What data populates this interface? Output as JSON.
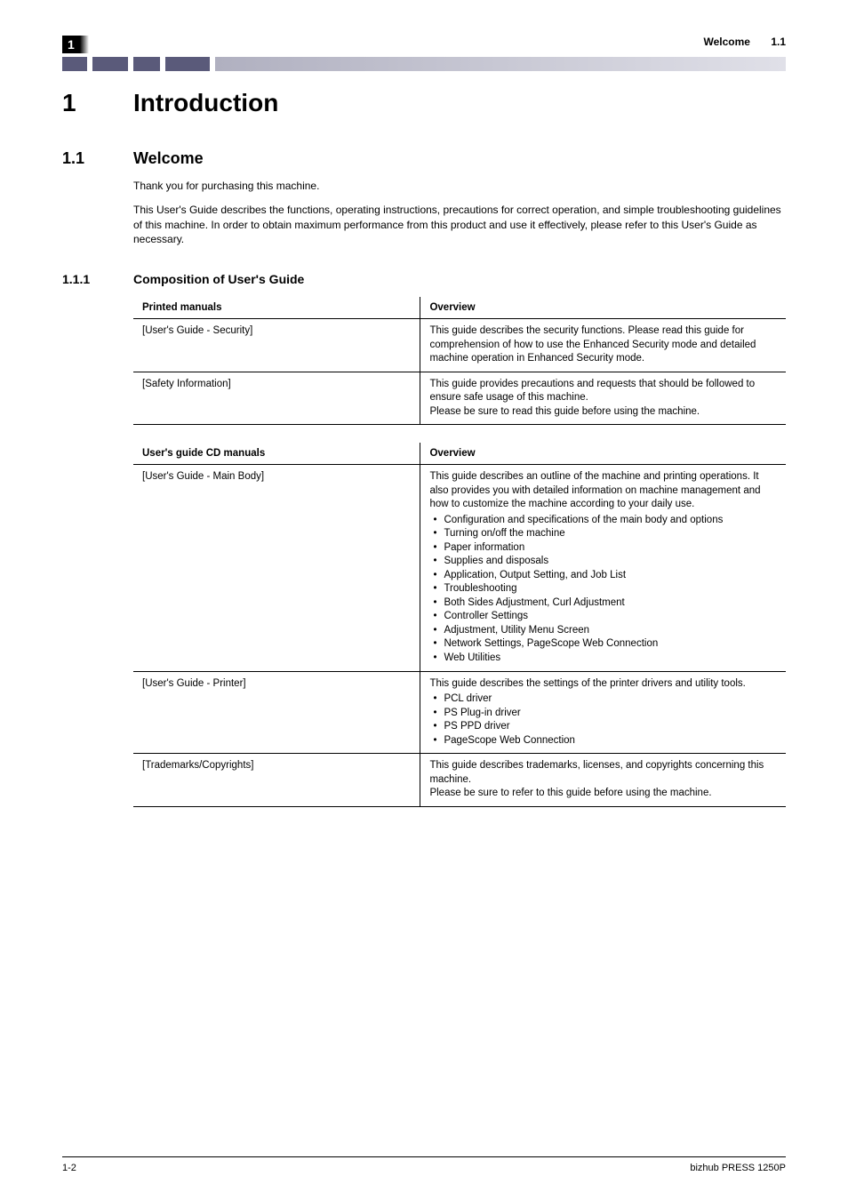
{
  "header": {
    "chapter_marker": "1",
    "header_title": "Welcome",
    "header_section_number": "1.1"
  },
  "chapter": {
    "number": "1",
    "title": "Introduction"
  },
  "section": {
    "number": "1.1",
    "title": "Welcome",
    "paragraphs": [
      "Thank you for purchasing this machine.",
      "This User's Guide describes the functions, operating instructions, precautions for correct operation, and simple troubleshooting guidelines of this machine. In order to obtain maximum performance from this product and use it effectively, please refer to this User's Guide as necessary."
    ]
  },
  "subsection": {
    "number": "1.1.1",
    "title": "Composition of User's Guide"
  },
  "table1": {
    "header_col1": "Printed manuals",
    "header_col2": "Overview",
    "rows": [
      {
        "col1": "[User's Guide - Security]",
        "col2_text": "This guide describes the security functions. Please read this guide for comprehension of how to use the Enhanced Security mode and detailed machine operation in Enhanced Security mode."
      },
      {
        "col1": "[Safety Information]",
        "col2_text": "This guide provides precautions and requests that should be followed to ensure safe usage of this machine.\nPlease be sure to read this guide before using the machine."
      }
    ]
  },
  "table2": {
    "header_col1": "User's guide CD manuals",
    "header_col2": "Overview",
    "rows": [
      {
        "col1": "[User's Guide - Main Body]",
        "col2_text": "This guide describes an outline of the machine and printing operations. It also provides you with detailed information on machine management and how to customize the machine according to your daily use.",
        "col2_bullets": [
          "Configuration and specifications of the main body and options",
          "Turning on/off the machine",
          "Paper information",
          "Supplies and disposals",
          "Application, Output Setting, and Job List",
          "Troubleshooting",
          "Both Sides Adjustment, Curl Adjustment",
          "Controller Settings",
          "Adjustment, Utility Menu Screen",
          "Network Settings, PageScope Web Connection",
          "Web Utilities"
        ]
      },
      {
        "col1": "[User's Guide - Printer]",
        "col2_text": "This guide describes the settings of the printer drivers and utility tools.",
        "col2_bullets": [
          "PCL driver",
          "PS Plug-in driver",
          "PS PPD driver",
          "PageScope Web Connection"
        ]
      },
      {
        "col1": "[Trademarks/Copyrights]",
        "col2_text": "This guide describes trademarks, licenses, and copyrights concerning this machine.\nPlease be sure to refer to this guide before using the machine."
      }
    ]
  },
  "footer": {
    "page_number": "1-2",
    "product": "bizhub PRESS 1250P"
  },
  "colors": {
    "text": "#000000",
    "background": "#ffffff",
    "divider_dark": "#5a5a7a",
    "divider_light_start": "#b0b0c0",
    "divider_light_end": "#e0e0e8"
  }
}
